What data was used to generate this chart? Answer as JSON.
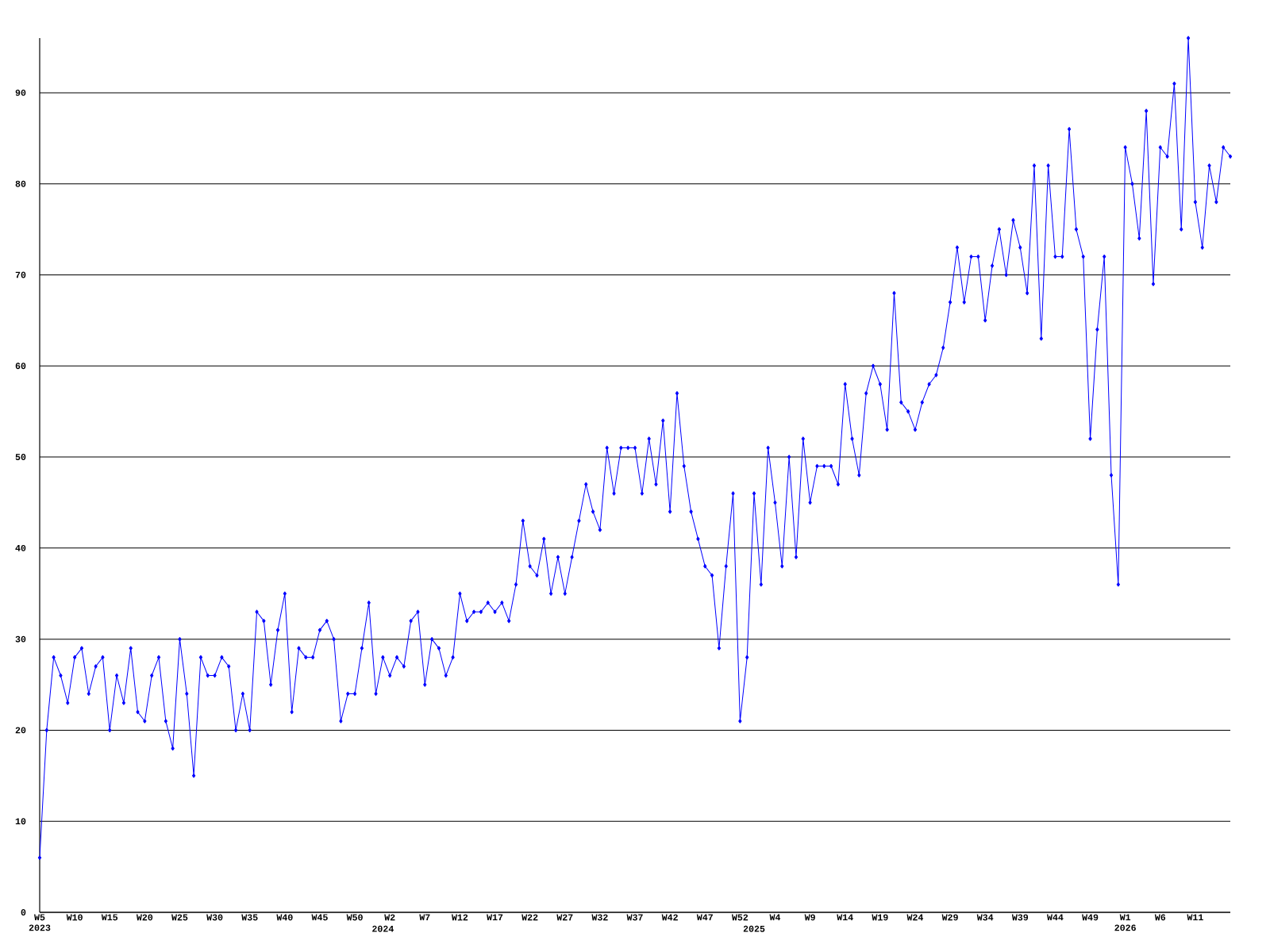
{
  "chart_data": {
    "type": "line",
    "categories": [
      "W5 2023",
      null,
      null,
      null,
      null,
      "W10",
      null,
      null,
      null,
      null,
      "W15",
      null,
      null,
      null,
      null,
      "W20",
      null,
      null,
      null,
      null,
      "W25",
      null,
      null,
      null,
      null,
      "W30",
      null,
      null,
      null,
      null,
      "W35",
      null,
      null,
      null,
      null,
      "W40",
      null,
      null,
      null,
      null,
      "W45",
      null,
      null,
      null,
      null,
      "W50",
      null,
      null,
      null,
      "2024",
      "W2",
      null,
      null,
      null,
      null,
      "W7",
      null,
      null,
      null,
      null,
      "W12",
      null,
      null,
      null,
      null,
      "W17",
      null,
      null,
      null,
      null,
      "W22",
      null,
      null,
      null,
      null,
      "W27",
      null,
      null,
      null,
      null,
      "W32",
      null,
      null,
      null,
      null,
      "W37",
      null,
      null,
      null,
      null,
      "W42",
      null,
      null,
      null,
      null,
      "W47",
      null,
      null,
      null,
      null,
      "W52",
      null,
      "2025",
      null,
      null,
      "W4",
      null,
      null,
      null,
      null,
      "W9",
      null,
      null,
      null,
      null,
      "W14",
      null,
      null,
      null,
      null,
      "W19",
      null,
      null,
      null,
      null,
      "W24",
      null,
      null,
      null,
      null,
      "W29",
      null,
      null,
      null,
      null,
      "W34",
      null,
      null,
      null,
      null,
      "W39",
      null,
      null,
      null,
      null,
      "W44",
      null,
      null,
      null,
      null,
      "W49",
      null,
      null,
      null,
      null,
      "W1 2026",
      null,
      null,
      null,
      null,
      "W6",
      null,
      null,
      null,
      null,
      "W11",
      null,
      null,
      null,
      null,
      null
    ],
    "series": [
      {
        "color": "#0000ff",
        "values": [
          6,
          20,
          28,
          26,
          23,
          28,
          29,
          24,
          27,
          28,
          20,
          26,
          23,
          29,
          22,
          21,
          26,
          28,
          21,
          18,
          30,
          24,
          15,
          28,
          26,
          26,
          28,
          27,
          20,
          24,
          20,
          33,
          32,
          25,
          31,
          35,
          22,
          29,
          28,
          28,
          31,
          32,
          30,
          21,
          24,
          24,
          29,
          34,
          24,
          28,
          26,
          28,
          27,
          32,
          33,
          25,
          30,
          29,
          26,
          28,
          35,
          32,
          33,
          33,
          34,
          33,
          34,
          32,
          36,
          43,
          38,
          37,
          41,
          35,
          39,
          35,
          39,
          43,
          47,
          44,
          42,
          51,
          46,
          51,
          51,
          51,
          46,
          52,
          47,
          54,
          44,
          57,
          49,
          44,
          41,
          38,
          37,
          29,
          38,
          46,
          21,
          28,
          46,
          36,
          51,
          45,
          38,
          50,
          39,
          52,
          45,
          49,
          49,
          49,
          47,
          58,
          52,
          48,
          57,
          60,
          58,
          53,
          68,
          56,
          55,
          53,
          56,
          58,
          59,
          62,
          67,
          73,
          67,
          72,
          72,
          65,
          71,
          75,
          70,
          76,
          73,
          68,
          82,
          63,
          82,
          72,
          72,
          86,
          75,
          72,
          52,
          64,
          72,
          48,
          36,
          84,
          80,
          74,
          88,
          69,
          84,
          83,
          91,
          75,
          96,
          78,
          73,
          82,
          78,
          84,
          83
        ]
      }
    ],
    "ylim": [
      0,
      96
    ],
    "yticks": [
      0,
      10,
      20,
      30,
      40,
      50,
      60,
      70,
      80,
      90
    ],
    "grid": "y",
    "marker": "diamond",
    "line_style": "solid"
  }
}
